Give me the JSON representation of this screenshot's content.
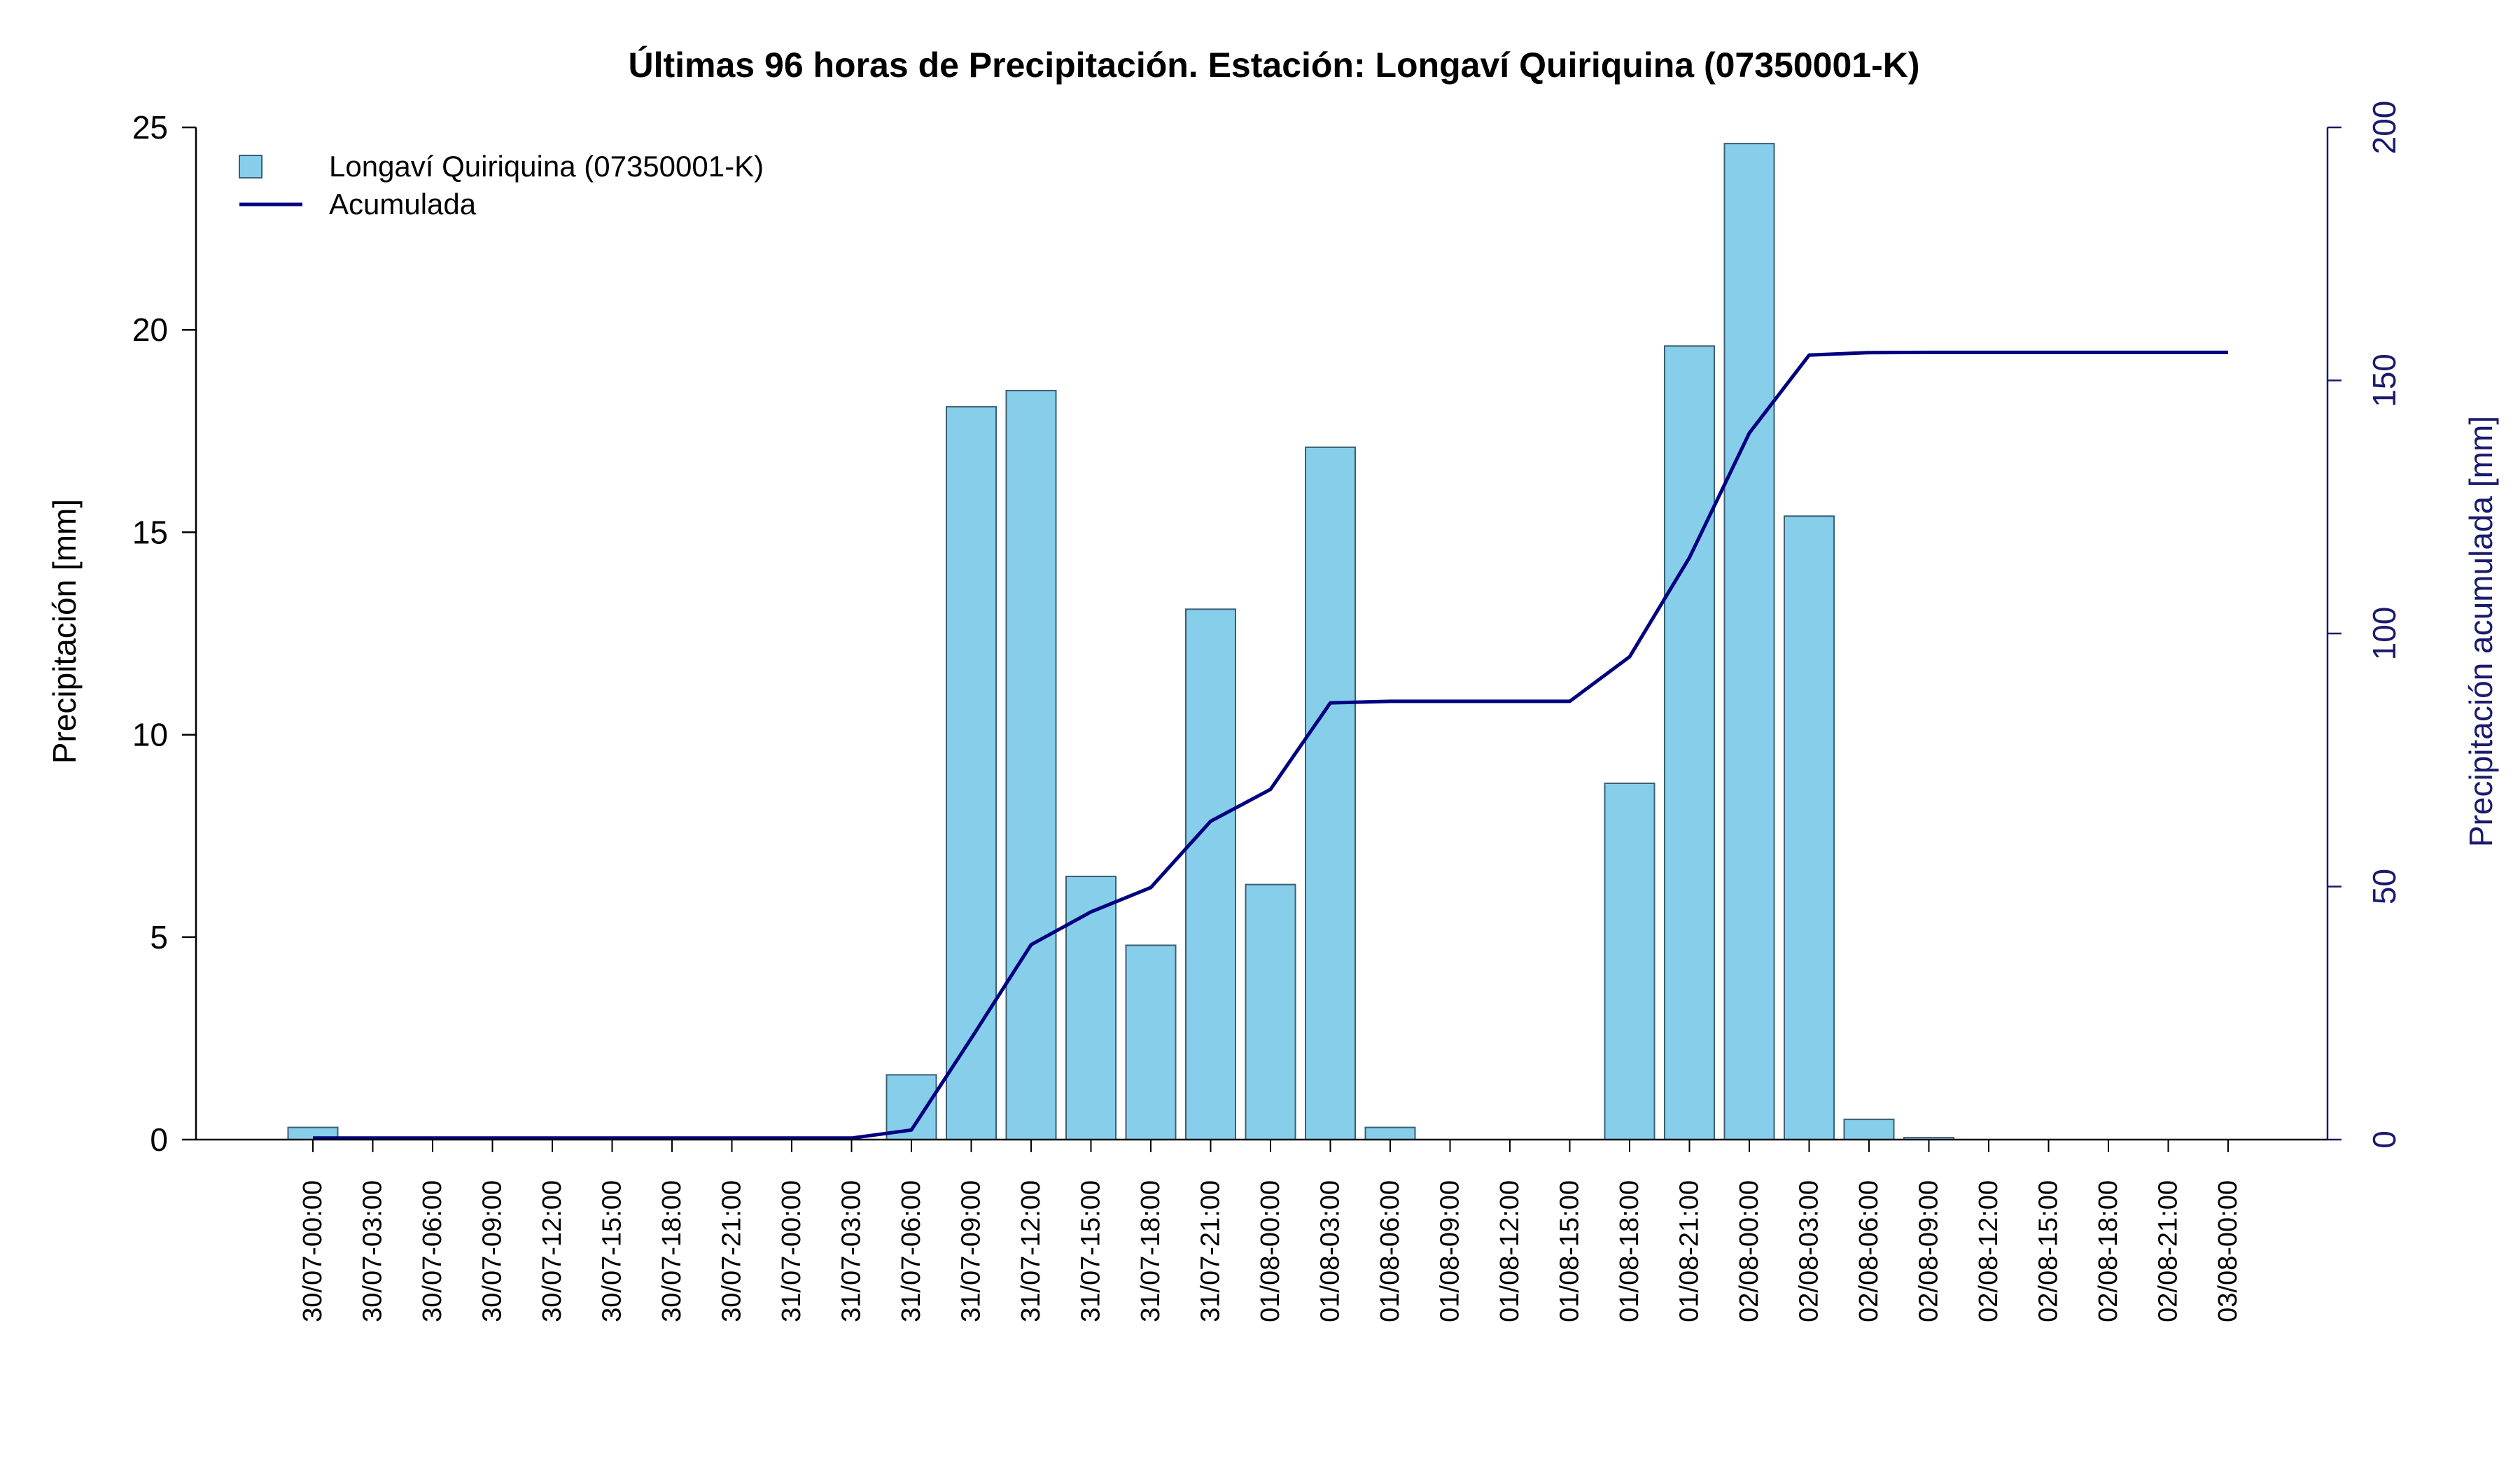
{
  "chart_data": {
    "type": "bar",
    "title": "Últimas 96 horas de Precipitación. Estación: Longaví Quiriquina (07350001-K)",
    "ylabel": "Precipitación [mm]",
    "ylabel_right": "Precipitación acumulada [mm]",
    "ylim": [
      0,
      25
    ],
    "ylim_right": [
      0,
      200
    ],
    "yticks": [
      "0",
      "5",
      "10",
      "15",
      "20",
      "25"
    ],
    "yticks_right": [
      "0",
      "50",
      "100",
      "150",
      "200"
    ],
    "legend_position": "top-left",
    "grid": false,
    "categories": [
      "30/07-00:00",
      "30/07-03:00",
      "30/07-06:00",
      "30/07-09:00",
      "30/07-12:00",
      "30/07-15:00",
      "30/07-18:00",
      "30/07-21:00",
      "31/07-00:00",
      "31/07-03:00",
      "31/07-06:00",
      "31/07-09:00",
      "31/07-12:00",
      "31/07-15:00",
      "31/07-18:00",
      "31/07-21:00",
      "01/08-00:00",
      "01/08-03:00",
      "01/08-06:00",
      "01/08-09:00",
      "01/08-12:00",
      "01/08-15:00",
      "01/08-18:00",
      "01/08-21:00",
      "02/08-00:00",
      "02/08-03:00",
      "02/08-06:00",
      "02/08-09:00",
      "02/08-12:00",
      "02/08-15:00",
      "02/08-18:00",
      "02/08-21:00",
      "03/08-00:00"
    ],
    "series": [
      {
        "name": "Longaví Quiriquina (07350001-K)",
        "type": "bar",
        "axis": "left",
        "color": "#87ceeb",
        "values": [
          0.3,
          0,
          0,
          0,
          0,
          0,
          0,
          0,
          0,
          0,
          1.6,
          18.1,
          18.5,
          6.5,
          4.8,
          13.1,
          6.3,
          17.1,
          0.3,
          0,
          0,
          0,
          8.8,
          19.6,
          24.6,
          15.4,
          0.5,
          0.05,
          0,
          0,
          0,
          0,
          0
        ]
      },
      {
        "name": "Acumulada",
        "type": "line",
        "axis": "right",
        "color": "#000080",
        "values": [
          0.3,
          0.3,
          0.3,
          0.3,
          0.3,
          0.3,
          0.3,
          0.3,
          0.3,
          0.3,
          1.9,
          20.0,
          38.5,
          45.0,
          49.8,
          62.9,
          69.2,
          86.3,
          86.6,
          86.6,
          86.6,
          86.6,
          95.4,
          115.0,
          139.6,
          155.0,
          155.5,
          155.55,
          155.55,
          155.55,
          155.55,
          155.55,
          155.55
        ]
      }
    ]
  }
}
